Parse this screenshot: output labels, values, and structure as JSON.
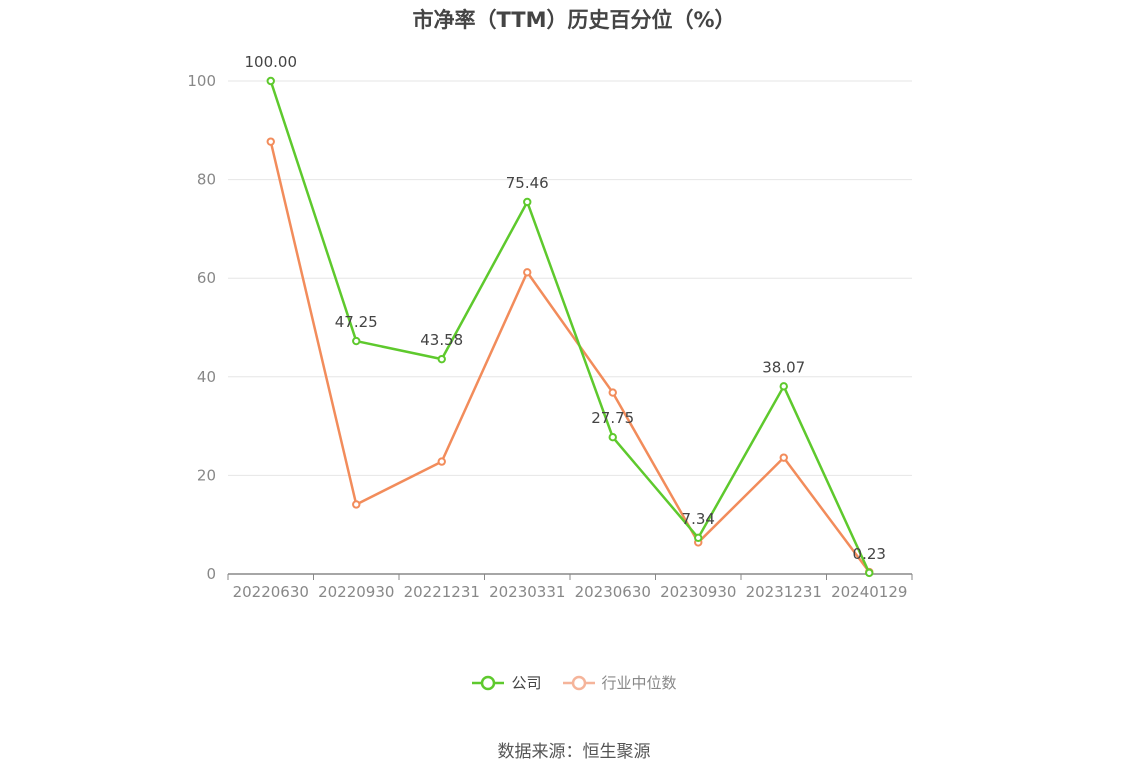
{
  "chart_data": {
    "type": "line",
    "title": "市净率（TTM）历史百分位（%）",
    "categories": [
      "20220630",
      "20220930",
      "20221231",
      "20230331",
      "20230630",
      "20230930",
      "20231231",
      "20240129"
    ],
    "ylim": [
      0,
      100
    ],
    "yticks": [
      0,
      20,
      40,
      60,
      80,
      100
    ],
    "grid": true,
    "legend_position": "bottom",
    "series": [
      {
        "name": "公司",
        "color": "#5ec92d",
        "values": [
          100.0,
          47.25,
          43.58,
          75.46,
          27.75,
          7.34,
          38.07,
          0.23
        ],
        "labels": [
          "100.00",
          "47.25",
          "43.58",
          "75.46",
          "27.75",
          "7.34",
          "38.07",
          "0.23"
        ]
      },
      {
        "name": "行业中位数",
        "color": "#f28c5b",
        "values": [
          87.7,
          14.1,
          22.8,
          61.2,
          36.8,
          6.4,
          23.6,
          0.4
        ]
      }
    ]
  },
  "legend": {
    "items": [
      {
        "label": "公司",
        "color": "#5ec92d"
      },
      {
        "label": "行业中位数",
        "color": "#f5b49a"
      }
    ]
  },
  "footer": {
    "source": "数据来源：恒生聚源"
  }
}
